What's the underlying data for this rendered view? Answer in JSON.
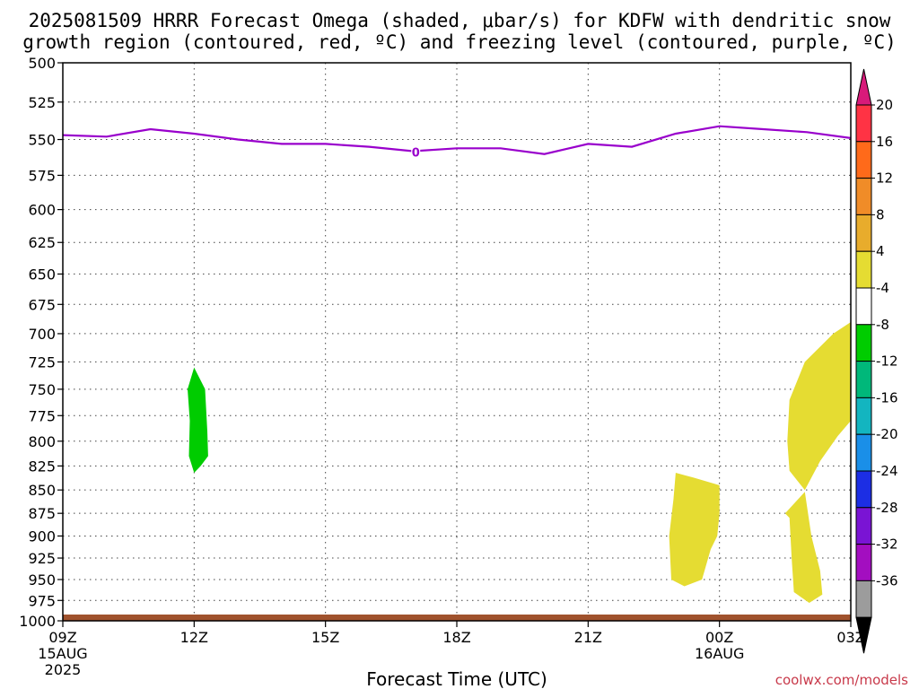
{
  "title_line1": "2025081509 HRRR Forecast Omega (shaded, μbar/s) for KDFW with dendritic snow",
  "title_line2": "growth region (contoured, red, ºC) and freezing level (contoured, purple, ºC)",
  "watermark": "coolwx.com/models",
  "chart_data": {
    "type": "heatmap",
    "xlabel": "Forecast Time (UTC)",
    "ylabel": "",
    "x_hours_range": [
      0,
      18
    ],
    "y_levels": [
      500,
      525,
      550,
      575,
      600,
      625,
      650,
      675,
      700,
      725,
      750,
      775,
      800,
      825,
      850,
      875,
      900,
      925,
      950,
      975,
      1000
    ],
    "x_ticks": [
      {
        "hour": 0,
        "label": "09Z",
        "sub1": "15AUG",
        "sub2": "2025"
      },
      {
        "hour": 3,
        "label": "12Z",
        "sub1": "",
        "sub2": ""
      },
      {
        "hour": 6,
        "label": "15Z",
        "sub1": "",
        "sub2": ""
      },
      {
        "hour": 9,
        "label": "18Z",
        "sub1": "",
        "sub2": ""
      },
      {
        "hour": 12,
        "label": "21Z",
        "sub1": "",
        "sub2": ""
      },
      {
        "hour": 15,
        "label": "00Z",
        "sub1": "16AUG",
        "sub2": ""
      },
      {
        "hour": 18,
        "label": "03Z",
        "sub1": "",
        "sub2": ""
      }
    ],
    "grid": true,
    "freezing_level": {
      "label": "0",
      "color": "#9900cc",
      "points": [
        [
          0,
          547
        ],
        [
          1,
          548
        ],
        [
          2,
          543
        ],
        [
          3,
          546
        ],
        [
          4,
          550
        ],
        [
          5,
          553
        ],
        [
          6,
          553
        ],
        [
          7,
          555
        ],
        [
          8,
          558
        ],
        [
          9,
          556
        ],
        [
          10,
          556
        ],
        [
          11,
          560
        ],
        [
          12,
          553
        ],
        [
          13,
          555
        ],
        [
          14,
          546
        ],
        [
          15,
          541
        ],
        [
          16,
          543
        ],
        [
          17,
          545
        ],
        [
          18,
          549
        ]
      ]
    },
    "omega_regions": [
      {
        "value_range": [
          -8,
          -4
        ],
        "color": "#00cc00",
        "points": [
          [
            3.0,
            730
          ],
          [
            3.25,
            750
          ],
          [
            3.3,
            790
          ],
          [
            3.32,
            815
          ],
          [
            3.15,
            825
          ],
          [
            3.0,
            832
          ],
          [
            2.88,
            815
          ],
          [
            2.9,
            780
          ],
          [
            2.85,
            750
          ]
        ]
      },
      {
        "value_range": [
          4,
          8
        ],
        "color": "#e5dc32",
        "points": [
          [
            14.0,
            832
          ],
          [
            14.4,
            837
          ],
          [
            15.0,
            845
          ],
          [
            15.0,
            875
          ],
          [
            14.95,
            900
          ],
          [
            14.8,
            915
          ],
          [
            14.6,
            950
          ],
          [
            14.2,
            958
          ],
          [
            13.9,
            950
          ],
          [
            13.85,
            900
          ],
          [
            13.95,
            860
          ]
        ]
      },
      {
        "value_range": [
          4,
          8
        ],
        "color": "#e5dc32",
        "points": [
          [
            18.0,
            690
          ],
          [
            18.0,
            780
          ],
          [
            17.7,
            795
          ],
          [
            17.3,
            820
          ],
          [
            16.95,
            850
          ],
          [
            16.6,
            830
          ],
          [
            16.55,
            800
          ],
          [
            16.6,
            760
          ],
          [
            16.95,
            725
          ],
          [
            17.6,
            700
          ]
        ]
      },
      {
        "value_range": [
          4,
          8
        ],
        "color": "#e5dc32",
        "points": [
          [
            16.95,
            852
          ],
          [
            17.1,
            900
          ],
          [
            17.3,
            940
          ],
          [
            17.35,
            968
          ],
          [
            17.05,
            978
          ],
          [
            16.7,
            965
          ],
          [
            16.65,
            925
          ],
          [
            16.6,
            880
          ],
          [
            16.5,
            875
          ]
        ]
      }
    ],
    "colorbar": {
      "labels": [
        "20",
        "16",
        "12",
        "8",
        "4",
        "-4",
        "-8",
        "-12",
        "-16",
        "-20",
        "-24",
        "-28",
        "-32",
        "-36"
      ],
      "colors": [
        "#ff3344",
        "#ff6a1a",
        "#f08c28",
        "#e8ac2c",
        "#e5dc32",
        "#ffffff",
        "#00cc00",
        "#00b87a",
        "#13b5c0",
        "#1a8fe8",
        "#1c2ee4",
        "#7a14d4",
        "#a30ec0",
        "#9c9c9c"
      ],
      "top_arrow_color": "#d81a7a",
      "bottom_arrow_color": "#000000"
    },
    "ground_color": "#a0522d"
  }
}
